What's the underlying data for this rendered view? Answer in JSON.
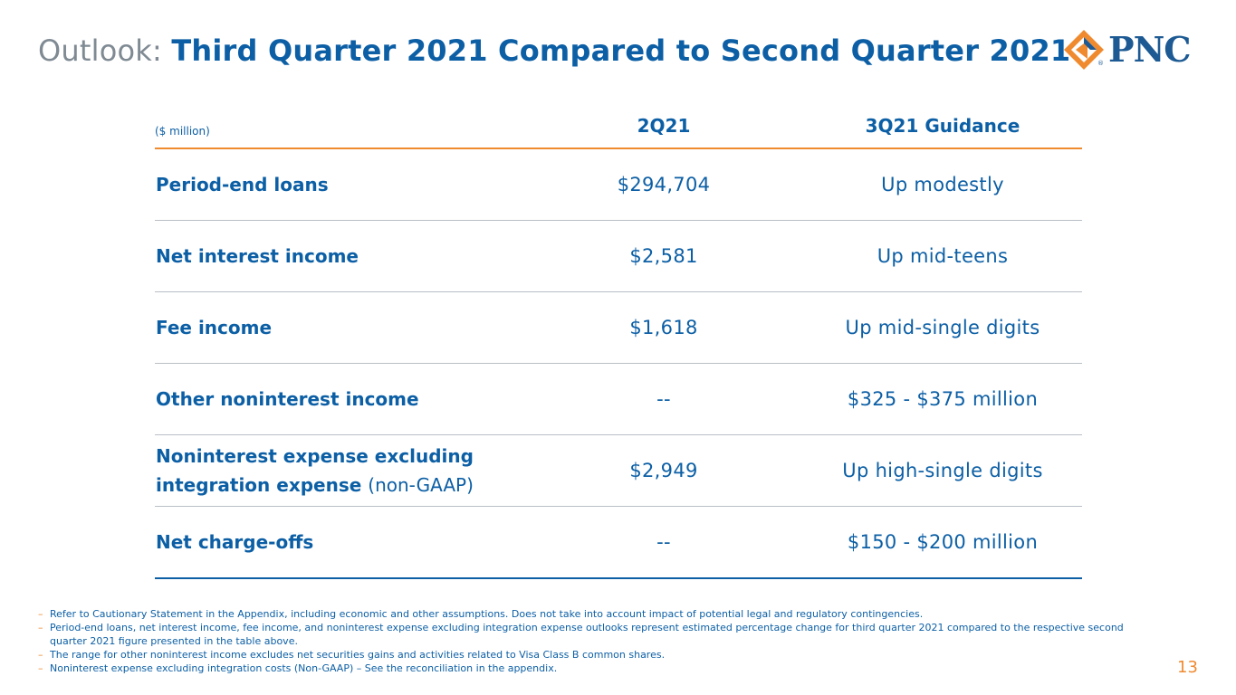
{
  "title": {
    "prefix": "Outlook:",
    "main": "Third Quarter 2021 Compared to Second Quarter 2021"
  },
  "logo": {
    "text": "PNC",
    "registered": "®",
    "colors": {
      "orange": "#ef8a2f",
      "blue": "#1d5a93"
    }
  },
  "table": {
    "unit": "($ million)",
    "columns": [
      "2Q21",
      "3Q21 Guidance"
    ],
    "rows": [
      {
        "label": "Period-end loans",
        "label_note": "",
        "q2": "$294,704",
        "q3": "Up modestly"
      },
      {
        "label": "Net interest income",
        "label_note": "",
        "q2": "$2,581",
        "q3": "Up mid-teens"
      },
      {
        "label": "Fee income",
        "label_note": "",
        "q2": "$1,618",
        "q3": "Up mid-single digits"
      },
      {
        "label": "Other noninterest income",
        "label_note": "",
        "q2": "--",
        "q3": "$325 - $375 million"
      },
      {
        "label_line1": "Noninterest expense excluding",
        "label_line2": "integration expense",
        "label_note": "(non-GAAP)",
        "q2": "$2,949",
        "q3": "Up high-single digits"
      },
      {
        "label": "Net charge-offs",
        "label_note": "",
        "q2": "--",
        "q3": "$150 - $200 million"
      }
    ]
  },
  "footnotes": [
    "Refer to Cautionary Statement in the Appendix, including economic and other assumptions. Does not take into account impact of potential legal and regulatory contingencies.",
    "Period-end loans, net interest income, fee income, and noninterest expense excluding integration expense outlooks represent estimated percentage change for third quarter 2021 compared to the respective second quarter 2021 figure presented in the table above.",
    "The range for other noninterest income excludes net securities gains and activities related to Visa Class B common shares.",
    "Noninterest expense excluding integration costs (Non-GAAP) – See the reconciliation in the appendix."
  ],
  "page_number": "13",
  "colors": {
    "brand_blue": "#0c5fa5",
    "accent_orange": "#ef8a2f",
    "title_gray": "#7f8a93",
    "divider_gray": "#b8bfc5"
  }
}
